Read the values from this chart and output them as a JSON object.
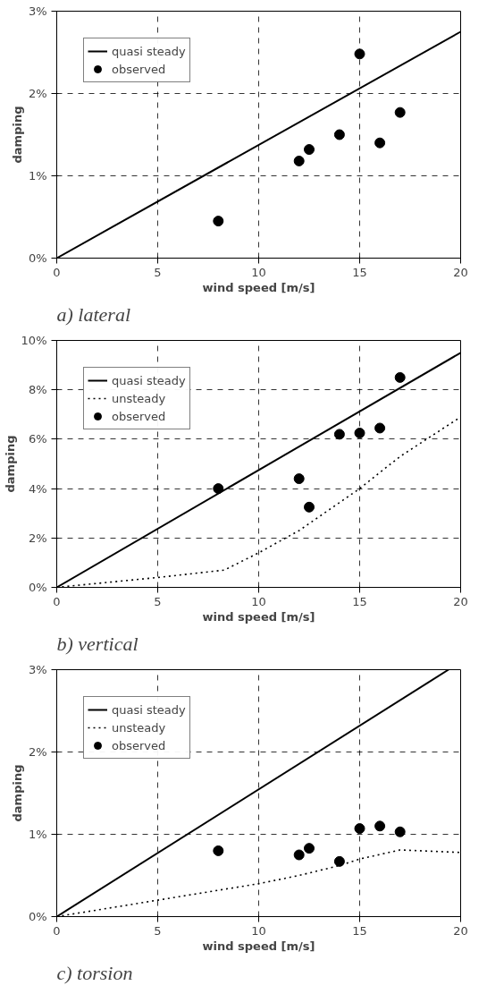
{
  "chart_data": [
    {
      "type": "line",
      "title": "a) lateral",
      "xlabel": "wind speed [m/s]",
      "ylabel": "damping",
      "xlim": [
        0,
        20
      ],
      "xticks": [
        0,
        5,
        10,
        15,
        20
      ],
      "ylim": [
        0,
        3
      ],
      "yticks": [
        {
          "value": 0,
          "label": "0%"
        },
        {
          "value": 1,
          "label": "1%"
        },
        {
          "value": 2,
          "label": "2%"
        },
        {
          "value": 3,
          "label": "3%"
        }
      ],
      "grid": true,
      "legend": "top left",
      "series": [
        {
          "name": "quasi steady",
          "line_style": "solid",
          "marker": "none",
          "color": "#000000",
          "x": [
            0,
            20
          ],
          "values": [
            0,
            2.75
          ]
        },
        {
          "name": "observed",
          "type": "scatter",
          "marker": "circle",
          "color": "#000000",
          "x": [
            8,
            12,
            12.5,
            14,
            15,
            16,
            17
          ],
          "values": [
            0.45,
            1.18,
            1.32,
            1.5,
            2.48,
            1.4,
            1.77
          ]
        }
      ]
    },
    {
      "type": "line",
      "title": "b) vertical",
      "xlabel": "wind speed [m/s]",
      "ylabel": "damping",
      "xlim": [
        0,
        20
      ],
      "xticks": [
        0,
        5,
        10,
        15,
        20
      ],
      "ylim": [
        0,
        10
      ],
      "yticks": [
        {
          "value": 0,
          "label": "0%"
        },
        {
          "value": 2,
          "label": "2%"
        },
        {
          "value": 4,
          "label": "4%"
        },
        {
          "value": 6,
          "label": "6%"
        },
        {
          "value": 8,
          "label": "8%"
        },
        {
          "value": 10,
          "label": "10%"
        }
      ],
      "grid": true,
      "legend": "top left",
      "series": [
        {
          "name": "quasi steady",
          "line_style": "solid",
          "marker": "none",
          "color": "#000000",
          "x": [
            0,
            20
          ],
          "values": [
            0,
            9.5
          ]
        },
        {
          "name": "unsteady",
          "line_style": "dotted",
          "marker": "none",
          "color": "#000000",
          "x": [
            0,
            5,
            8.3,
            10,
            12,
            15,
            17,
            20
          ],
          "values": [
            0,
            0.4,
            0.7,
            1.4,
            2.3,
            4.0,
            5.3,
            6.9
          ]
        },
        {
          "name": "observed",
          "type": "scatter",
          "marker": "circle",
          "color": "#000000",
          "x": [
            8,
            12,
            12.5,
            14,
            15,
            16,
            17
          ],
          "values": [
            4.0,
            4.4,
            3.25,
            6.2,
            6.25,
            6.45,
            8.5
          ]
        }
      ]
    },
    {
      "type": "line",
      "title": "c) torsion",
      "xlabel": "wind speed [m/s]",
      "ylabel": "damping",
      "xlim": [
        0,
        20
      ],
      "xticks": [
        0,
        5,
        10,
        15,
        20
      ],
      "ylim": [
        0,
        3
      ],
      "yticks": [
        {
          "value": 0,
          "label": "0%"
        },
        {
          "value": 1,
          "label": "1%"
        },
        {
          "value": 2,
          "label": "2%"
        },
        {
          "value": 3,
          "label": "3%"
        }
      ],
      "grid": true,
      "legend": "top left",
      "series": [
        {
          "name": "quasi steady",
          "line_style": "solid",
          "marker": "none",
          "color": "#000000",
          "x": [
            0,
            19.4
          ],
          "values": [
            0,
            3.0
          ]
        },
        {
          "name": "unsteady",
          "line_style": "dotted",
          "marker": "none",
          "color": "#000000",
          "x": [
            0,
            5,
            8,
            10,
            12,
            14,
            15,
            17,
            20
          ],
          "values": [
            0,
            0.2,
            0.32,
            0.4,
            0.5,
            0.62,
            0.7,
            0.81,
            0.78
          ]
        },
        {
          "name": "observed",
          "type": "scatter",
          "marker": "circle",
          "color": "#000000",
          "x": [
            8,
            12,
            12.5,
            14,
            15,
            16,
            17
          ],
          "values": [
            0.8,
            0.75,
            0.83,
            0.67,
            1.07,
            1.1,
            1.03
          ]
        }
      ]
    }
  ]
}
